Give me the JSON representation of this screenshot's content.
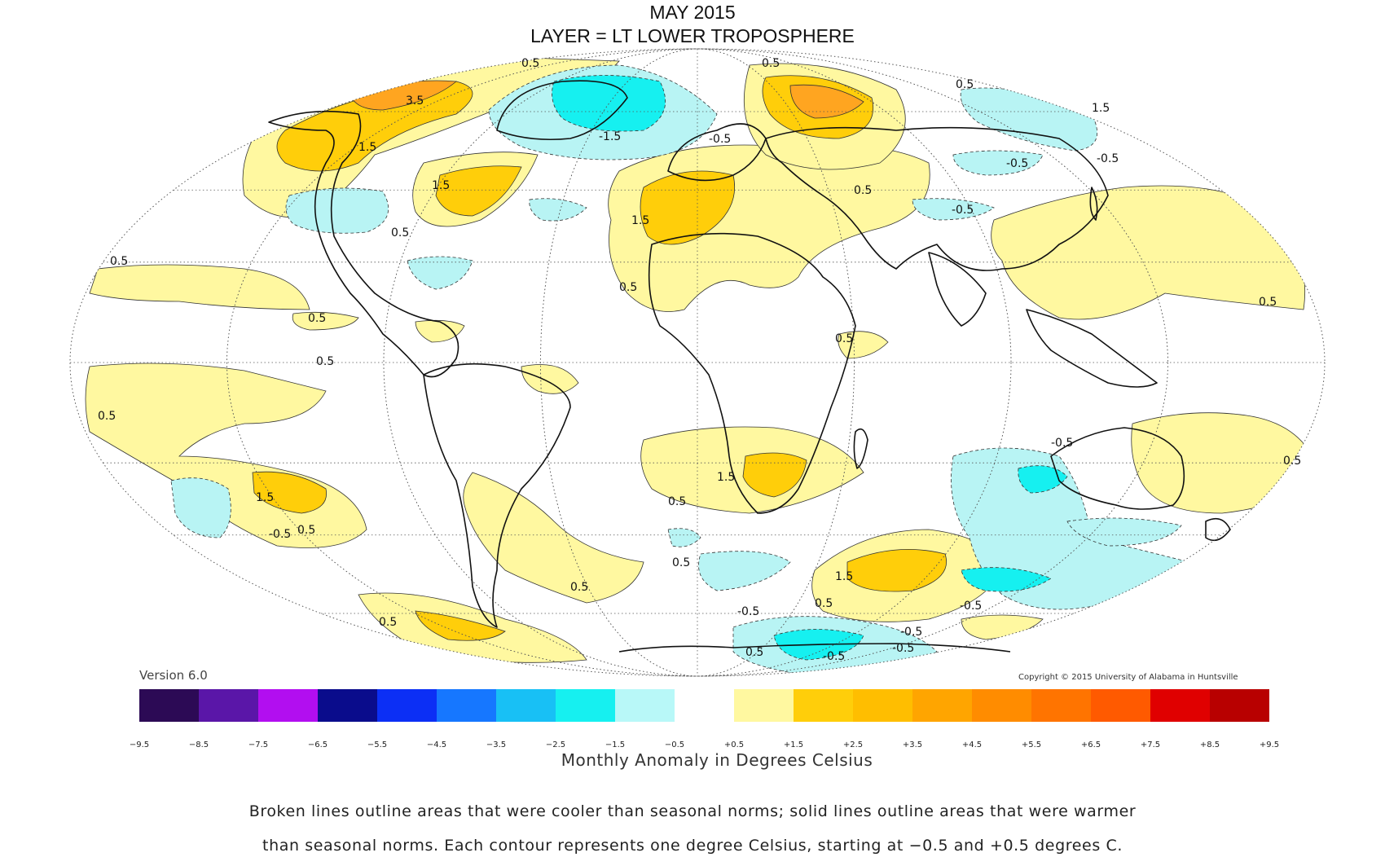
{
  "title": "MAY 2015",
  "subtitle": "LAYER = LT LOWER TROPOSPHERE",
  "version": "Version 6.0",
  "copyright": "Copyright © 2015 University of Alabama in Huntsville",
  "legend": {
    "unit_label": "Monthly Anomaly in Degrees Celsius",
    "ticks": [
      "−9.5",
      "−8.5",
      "−7.5",
      "−6.5",
      "−5.5",
      "−4.5",
      "−3.5",
      "−2.5",
      "−1.5",
      "−0.5",
      "+0.5",
      "+1.5",
      "+2.5",
      "+3.5",
      "+4.5",
      "+5.5",
      "+6.5",
      "+7.5",
      "+8.5",
      "+9.5"
    ],
    "colors": [
      "#2c0a55",
      "#5a16a8",
      "#b20ef0",
      "#0a0c8c",
      "#0c2ff5",
      "#1677ff",
      "#18c0f5",
      "#16f0f0",
      "#b8f8f8",
      "#ffffff",
      "#fff8a0",
      "#ffce0a",
      "#ffbe00",
      "#ffa500",
      "#ff8c00",
      "#ff7400",
      "#ff5a00",
      "#e00000",
      "#b80000"
    ]
  },
  "note_line1": "Broken lines outline areas that were cooler than seasonal norms; solid lines outline areas that were warmer",
  "note_line2": "than seasonal norms. Each contour represents one degree Celsius, starting at −0.5 and +0.5 degrees C.",
  "contour_labels": [
    "0.5",
    "1.5",
    "3.5",
    "-0.5",
    "-1.5",
    "0.5",
    "0.5",
    "-0.5",
    "-0.5",
    "1.5",
    "1.5",
    "-0.5",
    "-0.5",
    "0.5",
    "0.5",
    "0.5",
    "0.5",
    "0.5",
    "0.5",
    "1.5",
    "0.5",
    "-0.5",
    "1.5",
    "-0.5",
    "0.5",
    "0.5",
    "0.5",
    "0.5",
    "1.5",
    "-0.5",
    "-0.5",
    "-0.5",
    "0.5",
    "-0.5",
    "0.5",
    "0.5",
    "1.5",
    "0.5",
    "0.5",
    "0.5"
  ],
  "colors": {
    "warm1": "#fff8a0",
    "warm2": "#ffce0a",
    "warm3": "#ffa520",
    "cool1": "#b8f4f4",
    "cool2": "#16f0f0",
    "cool3": "#18c0f5"
  }
}
